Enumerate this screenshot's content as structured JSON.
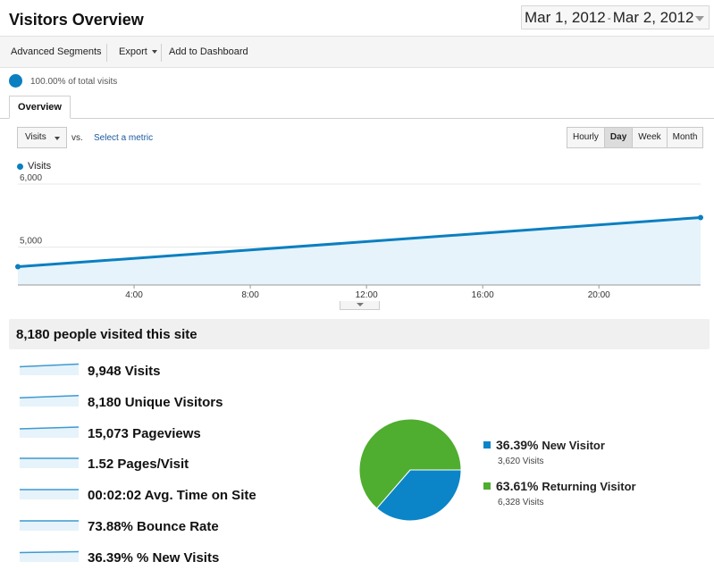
{
  "header": {
    "title": "Visitors Overview",
    "date_start": "Mar 1, 2012",
    "date_sep": "-",
    "date_end": "Mar 2, 2012"
  },
  "toolbar": {
    "advanced_segments": "Advanced Segments",
    "export": "Export",
    "add_to_dashboard": "Add to Dashboard"
  },
  "segment": {
    "label": "100.00% of total visits"
  },
  "tabs": {
    "overview": "Overview"
  },
  "controls": {
    "metric": "Visits",
    "vs": "vs.",
    "select_metric": "Select a metric",
    "periods": [
      "Hourly",
      "Day",
      "Week",
      "Month"
    ],
    "active_period": "Day"
  },
  "chart_data": {
    "type": "area",
    "series": [
      {
        "name": "Visits",
        "x": [
          0,
          23.5
        ],
        "values": [
          4690,
          5470
        ]
      }
    ],
    "y_ticks": [
      "6,000",
      "5,000"
    ],
    "y_tick_values": [
      6000,
      5000
    ],
    "x_ticks": [
      "4:00",
      "8:00",
      "12:00",
      "16:00",
      "20:00"
    ],
    "x_tick_values": [
      4,
      8,
      12,
      16,
      20
    ],
    "xlim": [
      0,
      23.5
    ],
    "ylim": [
      4400,
      6100
    ],
    "grid": true,
    "line_color": "#0b7fc0",
    "fill_color": "#e6f3fa"
  },
  "summary": {
    "title": "8,180 people visited this site",
    "metrics": [
      {
        "value": "9,948",
        "label": "Visits"
      },
      {
        "value": "8,180",
        "label": "Unique Visitors"
      },
      {
        "value": "15,073",
        "label": "Pageviews"
      },
      {
        "value": "1.52",
        "label": "Pages/Visit"
      },
      {
        "value": "00:02:02",
        "label": "Avg. Time on Site"
      },
      {
        "value": "73.88%",
        "label": "Bounce Rate"
      },
      {
        "value": "36.39%",
        "label": "% New Visits"
      }
    ]
  },
  "pie": {
    "slices": [
      {
        "name": "New Visitor",
        "pct": "36.39%",
        "value": 36.39,
        "visits": "3,620 Visits",
        "color": "#0b85c8"
      },
      {
        "name": "Returning Visitor",
        "pct": "63.61%",
        "value": 63.61,
        "visits": "6,328 Visits",
        "color": "#4fad2f"
      }
    ]
  }
}
